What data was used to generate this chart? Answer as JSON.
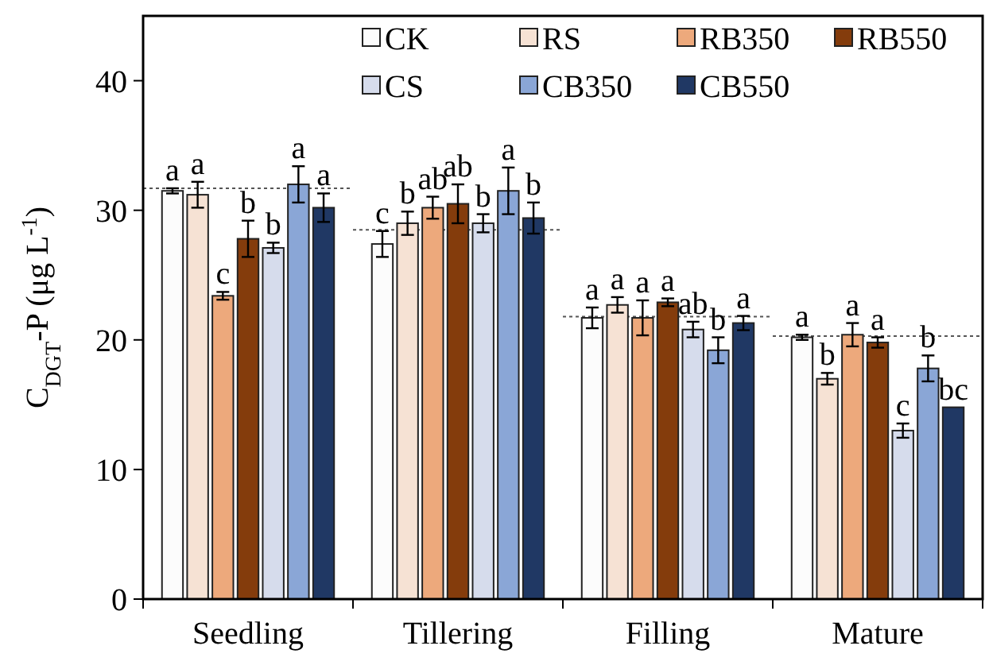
{
  "chart_data": {
    "type": "bar",
    "ylabel": "C$_{DGT}$-P (μg L$^{-1}$)",
    "categories": [
      "Seedling",
      "Tillering",
      "Filling",
      "Mature"
    ],
    "ylim": [
      0,
      45
    ],
    "yticks": [
      0,
      10,
      20,
      30,
      40
    ],
    "grid": false,
    "legend": "top right",
    "series": [
      {
        "name": "CK",
        "color": "#fcfcfc",
        "values": [
          31.5,
          27.4,
          21.7,
          20.2
        ],
        "errors": [
          0.2,
          1.0,
          0.8,
          0.2
        ],
        "value_labels": [
          "a",
          "c",
          "a",
          "a"
        ]
      },
      {
        "name": "RS",
        "color": "#f6e2d4",
        "values": [
          31.2,
          29.0,
          22.7,
          17.0
        ],
        "errors": [
          1.0,
          0.9,
          0.6,
          0.45
        ],
        "value_labels": [
          "a",
          "b",
          "a",
          "b"
        ]
      },
      {
        "name": "RB350",
        "color": "#eda97c",
        "values": [
          23.4,
          30.2,
          21.7,
          20.4
        ],
        "errors": [
          0.3,
          0.85,
          1.35,
          0.9
        ],
        "value_labels": [
          "c",
          "ab",
          "a",
          "a"
        ]
      },
      {
        "name": "RB550",
        "color": "#843c0c",
        "values": [
          27.8,
          30.5,
          22.9,
          19.8
        ],
        "errors": [
          1.4,
          1.5,
          0.3,
          0.4
        ],
        "value_labels": [
          "b",
          "ab",
          "a",
          "a"
        ]
      },
      {
        "name": "CS",
        "color": "#d6dcec",
        "values": [
          27.1,
          29.0,
          20.8,
          13.0
        ],
        "errors": [
          0.4,
          0.7,
          0.6,
          0.55
        ],
        "value_labels": [
          "b",
          "b",
          "ab",
          "c"
        ]
      },
      {
        "name": "CB350",
        "color": "#8aa6d6",
        "values": [
          32.0,
          31.5,
          19.2,
          17.8
        ],
        "errors": [
          1.4,
          1.8,
          1.0,
          1.0
        ],
        "value_labels": [
          "a",
          "a",
          "b",
          "b"
        ]
      },
      {
        "name": "CB550",
        "color": "#203864",
        "values": [
          30.2,
          29.4,
          21.3,
          14.8
        ],
        "errors": [
          1.1,
          1.2,
          0.55,
          null
        ],
        "value_labels": [
          "a",
          "b",
          "a",
          "bc"
        ]
      }
    ],
    "ref_lines": [
      {
        "axis": "y",
        "value": 31.7,
        "label": null,
        "color": "#555555",
        "line_style": "dotted"
      },
      {
        "axis": "y",
        "value": 28.5,
        "label": null,
        "color": "#555555",
        "line_style": "dotted"
      },
      {
        "axis": "y",
        "value": 21.8,
        "label": null,
        "color": "#555555",
        "line_style": "dotted"
      },
      {
        "axis": "y",
        "value": 20.3,
        "label": null,
        "color": "#555555",
        "line_style": "dotted"
      }
    ]
  }
}
